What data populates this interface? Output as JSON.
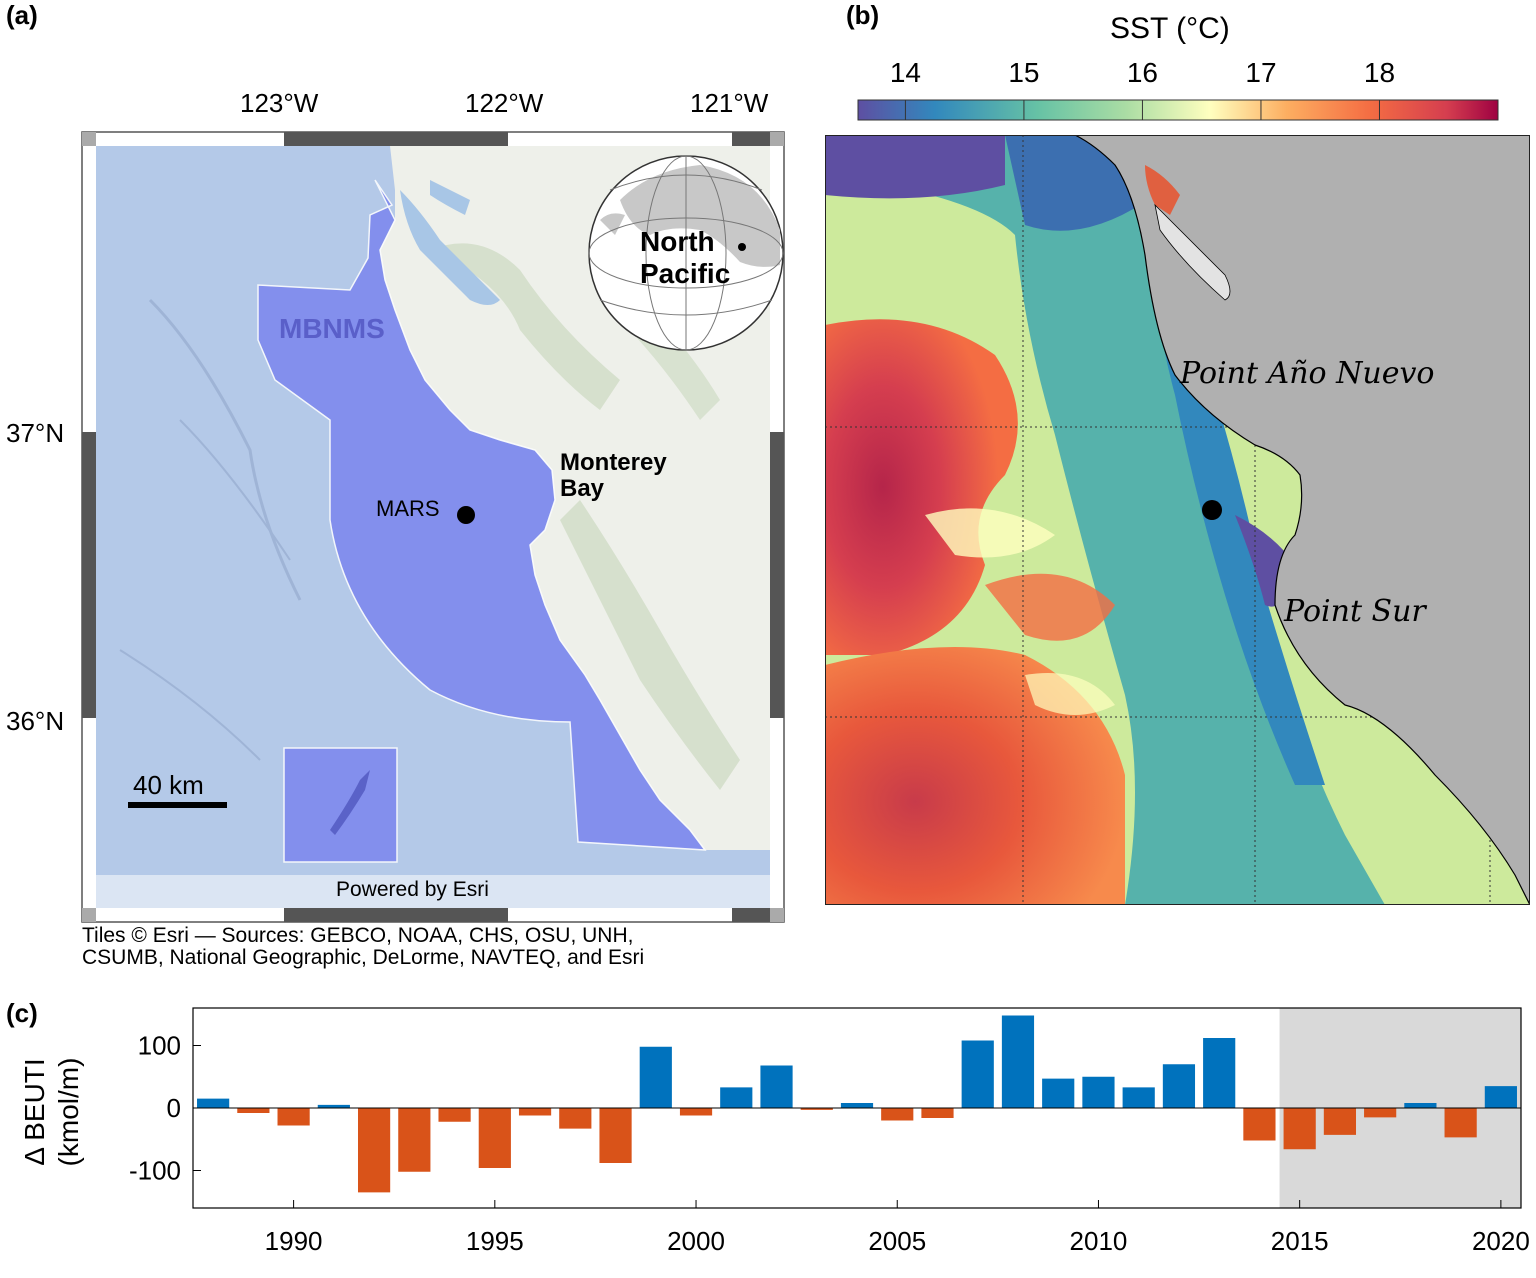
{
  "panel_a": {
    "label": "(a)",
    "lon_ticks": [
      "123°W",
      "122°W",
      "121°W"
    ],
    "lat_ticks": [
      "37°N",
      "36°N"
    ],
    "sanctuary_label": "MBNMS",
    "station_label": "MARS",
    "bay_label_line1": "Monterey",
    "bay_label_line2": "Bay",
    "inset_label_line1": "North",
    "inset_label_line2": "Pacific",
    "scale_label": "40 km",
    "powered_by": "Powered by Esri",
    "attribution_line1": "Tiles © Esri — Sources: GEBCO, NOAA, CHS, OSU, UNH,",
    "attribution_line2": "CSUMB, National Geographic, DeLorme, NAVTEQ, and Esri",
    "colors": {
      "sanctuary": "#7b86ee",
      "ocean": "#b4c9e8",
      "land": "#eef0ea"
    }
  },
  "panel_b": {
    "label": "(b)",
    "colorbar_title": "SST (°C)",
    "colorbar_ticks": [
      "14",
      "15",
      "16",
      "17",
      "18"
    ],
    "colorbar_range": [
      13.6,
      19.0
    ],
    "place_labels": [
      "Point Año Nuevo",
      "Point Sur"
    ],
    "colors": {
      "land": "#b0b0b0",
      "cold": "#5e4fa2",
      "warm": "#d53e4f"
    }
  },
  "panel_c": {
    "label": "(c)",
    "ylabel_line1": "Δ BEUTI",
    "ylabel_line2": "(kmol/m)",
    "chart_data": {
      "type": "bar",
      "x": [
        1988,
        1989,
        1990,
        1991,
        1992,
        1993,
        1994,
        1995,
        1996,
        1997,
        1998,
        1999,
        2000,
        2001,
        2002,
        2003,
        2004,
        2005,
        2006,
        2007,
        2008,
        2009,
        2010,
        2011,
        2012,
        2013,
        2014,
        2015,
        2016,
        2017,
        2018,
        2019,
        2020
      ],
      "values": [
        15,
        -8,
        -28,
        5,
        -135,
        -102,
        -22,
        -96,
        -12,
        -33,
        -88,
        98,
        -12,
        33,
        68,
        -3,
        8,
        -20,
        -16,
        108,
        148,
        47,
        50,
        33,
        70,
        112,
        -52,
        -66,
        -43,
        -15,
        8,
        -47,
        35
      ],
      "xticks": [
        "1990",
        "1995",
        "2000",
        "2005",
        "2010",
        "2015",
        "2020"
      ],
      "yticks": [
        "-100",
        "0",
        "100"
      ],
      "xlim": [
        1987.5,
        2020.5
      ],
      "ylim": [
        -160,
        160
      ],
      "shaded_from": 2014.5,
      "colors": {
        "positive": "#0072bd",
        "negative": "#d95319",
        "shade": "#d9d9d9"
      }
    }
  }
}
